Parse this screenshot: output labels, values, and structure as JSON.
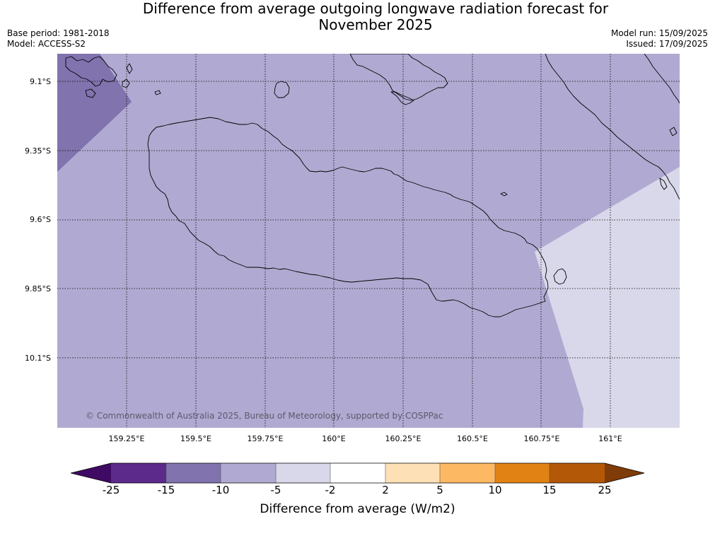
{
  "title_line1": "Difference from average outgoing longwave radiation forecast for",
  "title_line2": "November 2025",
  "base_period": "Base period: 1981-2018",
  "model": "Model: ACCESS-S2",
  "model_run": "Model run: 15/09/2025",
  "issued": "Issued: 17/09/2025",
  "copyright": "© Commonwealth of Australia 2025, Bureau of Meteorology, supported by COSPPac",
  "latitude_labels": [
    "9.1°S",
    "9.35°S",
    "9.6°S",
    "9.85°S",
    "10.1°S"
  ],
  "longitude_labels": [
    "159.25°E",
    "159.5°E",
    "159.75°E",
    "160°E",
    "160.25°E",
    "160.5°E",
    "160.75°E",
    "161°E"
  ],
  "colorbar": {
    "title": "Difference from average (W/m2)",
    "ticks": [
      "-25",
      "-15",
      "-10",
      "-5",
      "-2",
      "2",
      "5",
      "10",
      "15",
      "25"
    ],
    "colors": [
      "#3f0a63",
      "#5b2a8a",
      "#8073ae",
      "#b0aad2",
      "#d8d8ea",
      "#ffffff",
      "#fee0b6",
      "#fdb863",
      "#e08214",
      "#b35806",
      "#7f3b08"
    ]
  },
  "map_colors": {
    "minus_10_to_minus_5": "#b0aad2",
    "minus_15_to_minus_10": "#8073ae",
    "minus_5_to_minus_2": "#d8d8ea",
    "coastline": "#000000",
    "gridline": "#000000"
  }
}
